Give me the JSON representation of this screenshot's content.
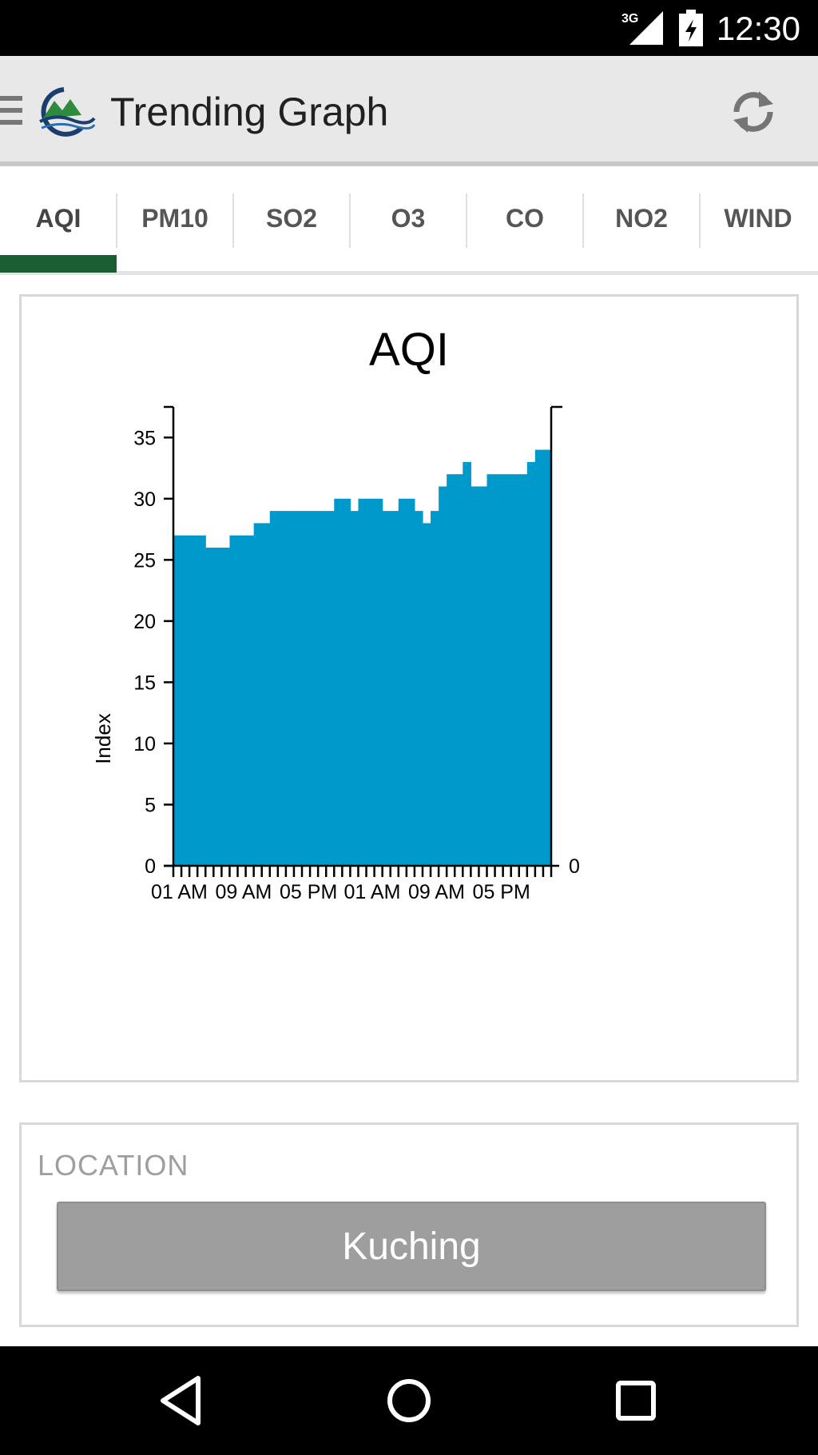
{
  "status_bar": {
    "time": "12:30",
    "network": "3G",
    "icons": [
      "signal-icon",
      "battery-charging-icon"
    ]
  },
  "app_bar": {
    "title": "Trending Graph",
    "icons": [
      "menu-icon",
      "logo-icon",
      "refresh-icon"
    ]
  },
  "tabs": [
    {
      "label": "AQI",
      "selected": true
    },
    {
      "label": "PM10",
      "selected": false
    },
    {
      "label": "SO2",
      "selected": false
    },
    {
      "label": "O3",
      "selected": false
    },
    {
      "label": "CO",
      "selected": false
    },
    {
      "label": "NO2",
      "selected": false
    },
    {
      "label": "WIND",
      "selected": false
    }
  ],
  "colors": {
    "accent": "#1b5e32",
    "bar": "#0099cc",
    "location_button": "#9e9e9e"
  },
  "chart_data": {
    "type": "bar",
    "title": "AQI",
    "ylabel": "Index",
    "xlabel": "",
    "ylim": [
      0,
      37.5
    ],
    "yticks": [
      0,
      5,
      10,
      15,
      20,
      25,
      30,
      35
    ],
    "right_axis_label": "0",
    "xtick_labels": [
      "01 AM",
      "09 AM",
      "05 PM",
      "01 AM",
      "09 AM",
      "05 PM"
    ],
    "x_start_hour": 1,
    "x_label_every_hours": 8,
    "grid": false,
    "values": [
      27,
      27,
      27,
      27,
      26,
      26,
      26,
      27,
      27,
      27,
      28,
      28,
      29,
      29,
      29,
      29,
      29,
      29,
      29,
      29,
      30,
      30,
      29,
      30,
      30,
      30,
      29,
      29,
      30,
      30,
      29,
      28,
      29,
      31,
      32,
      32,
      33,
      31,
      31,
      32,
      32,
      32,
      32,
      32,
      33,
      34,
      34
    ]
  },
  "location": {
    "label": "LOCATION",
    "value": "Kuching"
  },
  "nav_bar": {
    "icons": [
      "back-icon",
      "home-icon",
      "recents-icon"
    ]
  }
}
